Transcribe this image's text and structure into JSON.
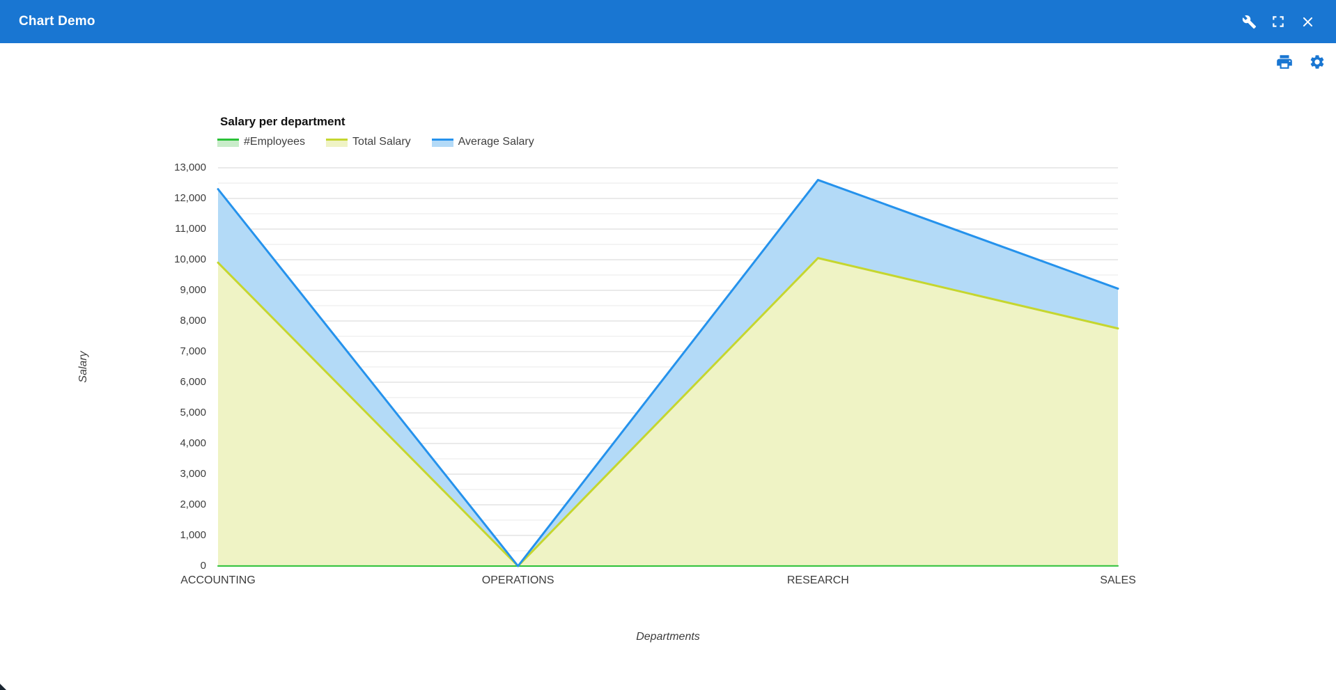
{
  "window": {
    "title": "Chart Demo",
    "titlebar_color": "#1976d2",
    "titlebar_tools": [
      "tools-icon",
      "maximize-icon",
      "close-icon"
    ]
  },
  "toolbar": {
    "buttons": [
      "print-icon",
      "settings-icon"
    ],
    "icon_color": "#1976d2"
  },
  "chart_data": {
    "type": "area",
    "stacked": true,
    "title": "Salary per department",
    "xlabel": "Departments",
    "ylabel": "Salary",
    "categories": [
      "ACCOUNTING",
      "OPERATIONS",
      "RESEARCH",
      "SALES"
    ],
    "series": [
      {
        "name": "#Employees",
        "values": [
          4,
          0,
          4,
          6
        ],
        "line_color": "#2bc138",
        "fill_color": "#c9ecca",
        "line_width": 2
      },
      {
        "name": "Total Salary",
        "values": [
          9900,
          0,
          10050,
          7750
        ],
        "line_color": "#c5d62f",
        "fill_color": "#eff3c5",
        "line_width": 3
      },
      {
        "name": "Average Salary",
        "values": [
          2400,
          0,
          2550,
          1300
        ],
        "line_color": "#2592ec",
        "fill_color": "#b3daf7",
        "line_width": 3
      }
    ],
    "ylim": [
      0,
      13000
    ],
    "ytick_step": 1000,
    "minor_tick_step": 500,
    "ytick_labels": [
      "0",
      "1,000",
      "2,000",
      "3,000",
      "4,000",
      "5,000",
      "6,000",
      "7,000",
      "8,000",
      "9,000",
      "10,000",
      "11,000",
      "12,000",
      "13,000"
    ],
    "legend_position": "top-left",
    "grid": true,
    "grid_major_color": "#d4d4d4",
    "grid_minor_color": "#eaeaea",
    "plot_bg": "#ffffff"
  }
}
